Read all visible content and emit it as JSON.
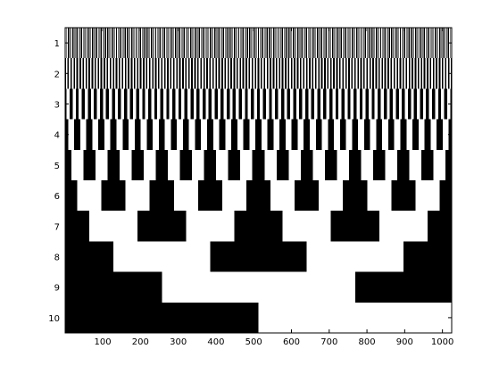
{
  "chart_data": {
    "type": "heatmap",
    "title": "",
    "xlabel": "",
    "ylabel": "",
    "colormap": [
      "#000000",
      "#ffffff"
    ],
    "columns": 1024,
    "rows": [
      1,
      2,
      3,
      4,
      5,
      6,
      7,
      8,
      9,
      10
    ],
    "xlim": [
      0.5,
      1024.5
    ],
    "ylim": [
      0.5,
      10.5
    ],
    "y_direction": "reverse",
    "description_values": "Row r encodes bit (11 - r) of the binary Gray code of the column index k = 0..1023 (0 = black, 1 = white).",
    "xticks": [
      100,
      200,
      300,
      400,
      500,
      600,
      700,
      800,
      900,
      1000
    ],
    "yticks": [
      1,
      2,
      3,
      4,
      5,
      6,
      7,
      8,
      9,
      10
    ],
    "grid": false,
    "legend": "none",
    "axis_box": true
  }
}
